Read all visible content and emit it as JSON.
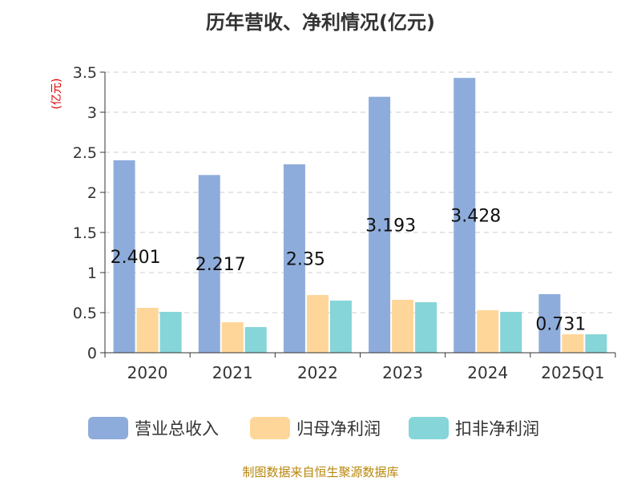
{
  "title": "历年营收、净利情况(亿元)",
  "source_text": "制图数据来自恒生聚源数据库",
  "chart_data": {
    "type": "bar",
    "title": "历年营收、净利情况(亿元)",
    "ylabel": "(亿元)",
    "ylim": [
      0,
      3.5
    ],
    "yticks": [
      "0",
      "0.5",
      "1",
      "1.5",
      "2",
      "2.5",
      "3",
      "3.5"
    ],
    "categories": [
      "2020",
      "2021",
      "2022",
      "2023",
      "2024",
      "2025Q1"
    ],
    "series": [
      {
        "name": "营业总收入",
        "color": "#8eacdb",
        "values": [
          2.401,
          2.217,
          2.35,
          3.193,
          3.428,
          0.731
        ]
      },
      {
        "name": "归母净利润",
        "color": "#ffd699",
        "values": [
          0.56,
          0.38,
          0.72,
          0.66,
          0.53,
          0.23
        ]
      },
      {
        "name": "扣非净利润",
        "color": "#86d5d8",
        "values": [
          0.51,
          0.32,
          0.65,
          0.63,
          0.51,
          0.23
        ]
      }
    ],
    "data_labels": [
      "2.401",
      "2.217",
      "2.35",
      "3.193",
      "3.428",
      "0.731"
    ],
    "grid": true,
    "legend_position": "bottom"
  }
}
